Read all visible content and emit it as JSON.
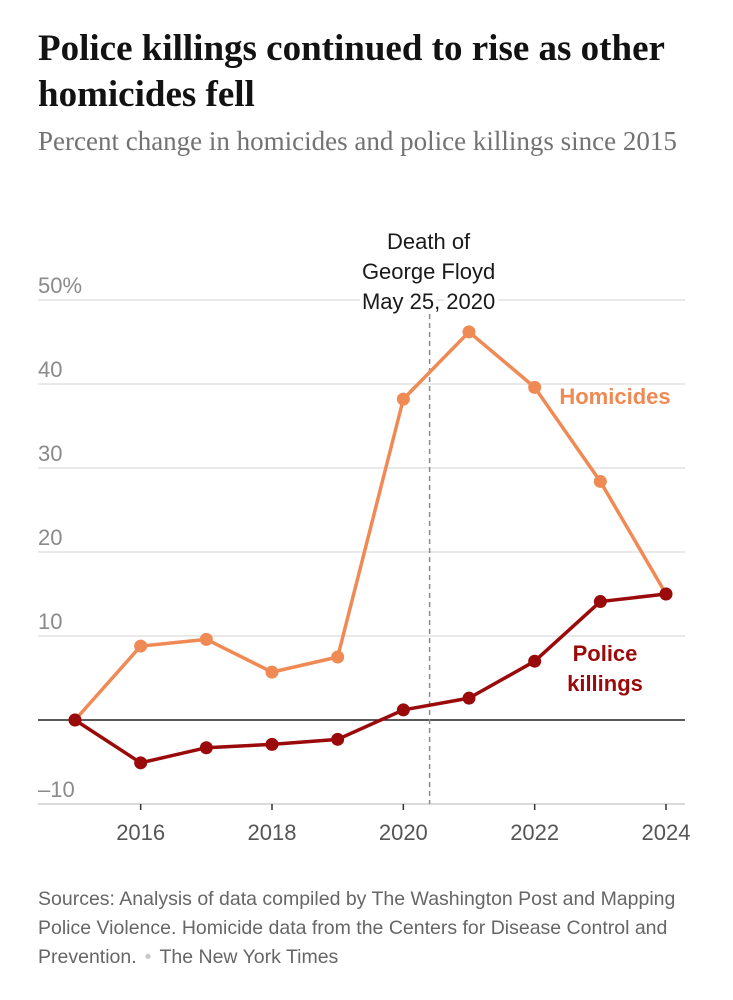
{
  "title": "Police killings continued to rise as other homicides fell",
  "subtitle": "Percent change in homicides and police killings since 2015",
  "source": {
    "text": "Sources: Analysis of data compiled by The Washington Post and Mapping Police Violence. Homicide data from the Centers for Disease Control and Prevention.",
    "credit": "The New York Times"
  },
  "chart_data": {
    "type": "line",
    "title": "Police killings continued to rise as other homicides fell",
    "subtitle": "Percent change in homicides and police killings since 2015",
    "xlabel": "",
    "ylabel": "",
    "x": [
      2015,
      2016,
      2017,
      2018,
      2019,
      2020,
      2021,
      2022,
      2023,
      2024
    ],
    "xlim": [
      2015,
      2024
    ],
    "ylim": [
      -10,
      50
    ],
    "x_ticks": [
      2016,
      2018,
      2020,
      2022,
      2024
    ],
    "x_tick_labels": [
      "2016",
      "2018",
      "2020",
      "2022",
      "2024"
    ],
    "y_ticks": [
      -10,
      10,
      20,
      30,
      40,
      50
    ],
    "y_tick_labels": [
      "–10",
      "10",
      "20",
      "30",
      "40",
      "50%"
    ],
    "grid": true,
    "series": [
      {
        "name": "Homicides",
        "label_lines": [
          "Homicides"
        ],
        "color": "#f08a55",
        "values": [
          0,
          8.8,
          9.6,
          5.7,
          7.5,
          38.2,
          46.2,
          39.6,
          28.4,
          15.0
        ]
      },
      {
        "name": "Police killings",
        "label_lines": [
          "Police",
          "killings"
        ],
        "color": "#9a0a0a",
        "values": [
          0,
          -5.1,
          -3.3,
          -2.9,
          -2.3,
          1.2,
          2.6,
          7.0,
          14.1,
          15.0
        ]
      }
    ],
    "annotations": [
      {
        "x": 2020.4,
        "lines": [
          "Death of",
          "George Floyd",
          "May 25, 2020"
        ]
      }
    ]
  }
}
